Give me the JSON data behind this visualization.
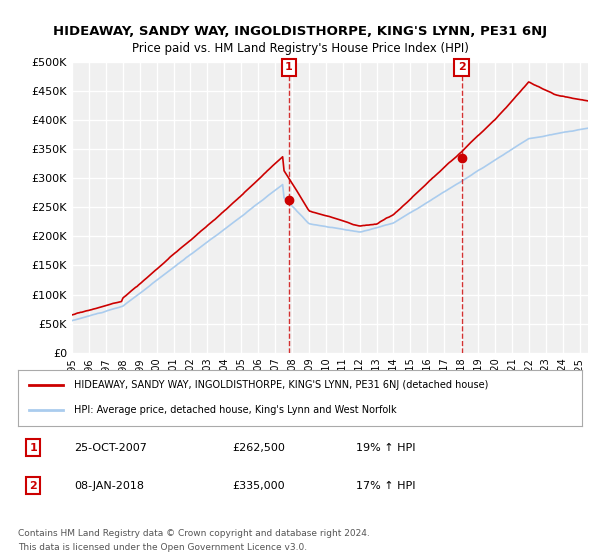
{
  "title": "HIDEAWAY, SANDY WAY, INGOLDISTHORPE, KING'S LYNN, PE31 6NJ",
  "subtitle": "Price paid vs. HM Land Registry's House Price Index (HPI)",
  "ylim": [
    0,
    500000
  ],
  "yticks": [
    0,
    50000,
    100000,
    150000,
    200000,
    250000,
    300000,
    350000,
    400000,
    450000,
    500000
  ],
  "ytick_labels": [
    "£0",
    "£50K",
    "£100K",
    "£150K",
    "£200K",
    "£250K",
    "£300K",
    "£350K",
    "£400K",
    "£450K",
    "£500K"
  ],
  "xlim_start": 1995.0,
  "xlim_end": 2025.5,
  "background_color": "#ffffff",
  "plot_background": "#f0f0f0",
  "grid_color": "#ffffff",
  "line1_color": "#cc0000",
  "line2_color": "#aaccee",
  "marker1_color": "#cc0000",
  "transaction1_x": 2007.82,
  "transaction1_y": 262500,
  "transaction1_label": "1",
  "transaction2_x": 2018.03,
  "transaction2_y": 335000,
  "transaction2_label": "2",
  "legend_line1": "HIDEAWAY, SANDY WAY, INGOLDISTHORPE, KING'S LYNN, PE31 6NJ (detached house)",
  "legend_line2": "HPI: Average price, detached house, King's Lynn and West Norfolk",
  "footer_line1": "Contains HM Land Registry data © Crown copyright and database right 2024.",
  "footer_line2": "This data is licensed under the Open Government Licence v3.0.",
  "table_row1": [
    "1",
    "25-OCT-2007",
    "£262,500",
    "19% ↑ HPI"
  ],
  "table_row2": [
    "2",
    "08-JAN-2018",
    "£335,000",
    "17% ↑ HPI"
  ]
}
